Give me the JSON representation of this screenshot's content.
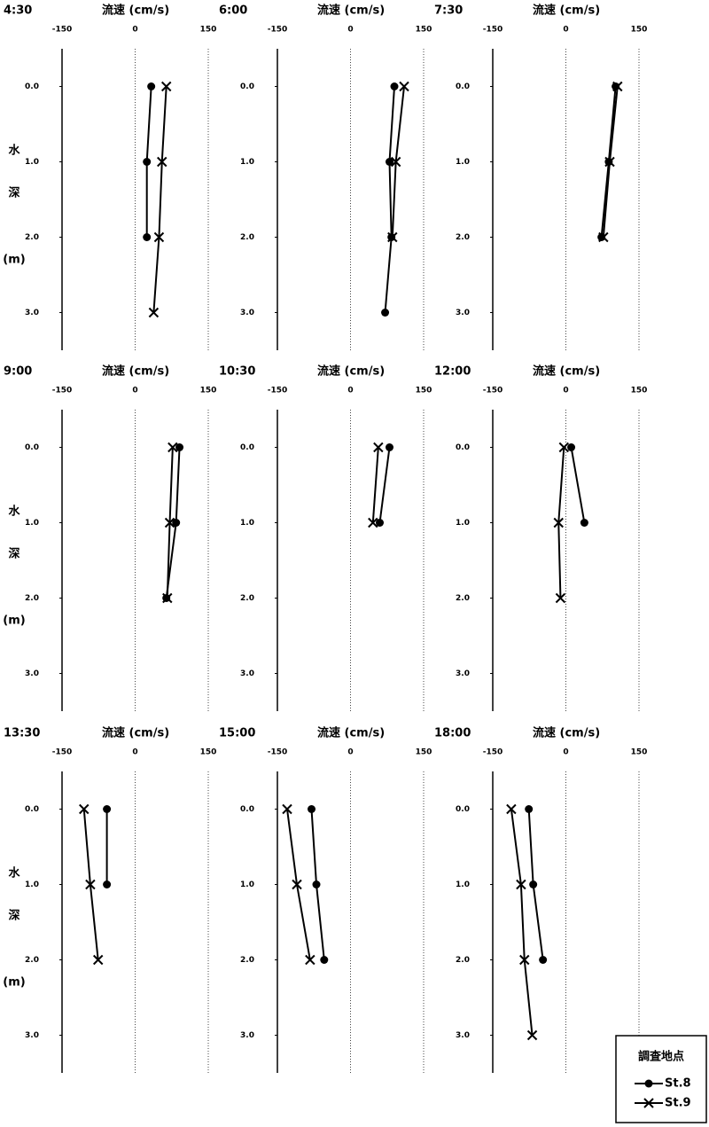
{
  "legend_title": "調査地点",
  "legend_position": "lower right",
  "chart_data": [
    {
      "type": "line",
      "title": "4:30",
      "xlabel": "流速 (cm/s)",
      "ylabel": [
        "水",
        "深",
        "(m)"
      ],
      "xlim": [
        -150,
        150
      ],
      "xticks": [
        -150,
        0,
        150
      ],
      "ylim": [
        -0.5,
        3.5
      ],
      "y_reversed": true,
      "yticks": [
        {
          "value": 0,
          "label": "0.0"
        },
        {
          "value": 1,
          "label": "1.0"
        },
        {
          "value": 2,
          "label": "2.0"
        },
        {
          "value": 3,
          "label": "3.0"
        }
      ],
      "series": [
        {
          "name": "St.8",
          "marker": "o",
          "color": "#000000",
          "x": [
            33,
            24,
            24
          ],
          "y": [
            0,
            1,
            2
          ]
        },
        {
          "name": "St.9",
          "marker": "x",
          "color": "#000000",
          "x": [
            64,
            55,
            49,
            38
          ],
          "y": [
            0,
            1,
            2,
            3
          ]
        }
      ]
    },
    {
      "type": "line",
      "title": "6:00",
      "xlabel": "流速 (cm/s)",
      "xlim": [
        -150,
        150
      ],
      "xticks": [
        -150,
        0,
        150
      ],
      "ylim": [
        -0.5,
        3.5
      ],
      "y_reversed": true,
      "yticks": [
        {
          "value": 0,
          "label": "0.0"
        },
        {
          "value": 1,
          "label": "1.0"
        },
        {
          "value": 2,
          "label": "2.0"
        },
        {
          "value": 3,
          "label": "3.0"
        }
      ],
      "series": [
        {
          "name": "St.8",
          "marker": "o",
          "color": "#000000",
          "x": [
            90,
            80,
            84,
            71
          ],
          "y": [
            0,
            1,
            2,
            3
          ]
        },
        {
          "name": "St.9",
          "marker": "x",
          "color": "#000000",
          "x": [
            110,
            93,
            86
          ],
          "y": [
            0,
            1,
            2
          ]
        }
      ]
    },
    {
      "type": "line",
      "title": "7:30",
      "xlabel": "流速 (cm/s)",
      "xlim": [
        -150,
        150
      ],
      "xticks": [
        -150,
        0,
        150
      ],
      "ylim": [
        -0.5,
        3.5
      ],
      "y_reversed": true,
      "yticks": [
        {
          "value": 0,
          "label": "0.0"
        },
        {
          "value": 1,
          "label": "1.0"
        },
        {
          "value": 2,
          "label": "2.0"
        },
        {
          "value": 3,
          "label": "3.0"
        }
      ],
      "series": [
        {
          "name": "St.8",
          "marker": "o",
          "color": "#000000",
          "x": [
            102,
            88,
            73
          ],
          "y": [
            0,
            1,
            2
          ]
        },
        {
          "name": "St.9",
          "marker": "x",
          "color": "#000000",
          "x": [
            106,
            90,
            77
          ],
          "y": [
            0,
            1,
            2
          ]
        }
      ]
    },
    {
      "type": "line",
      "title": "9:00",
      "xlabel": "流速 (cm/s)",
      "ylabel": [
        "水",
        "深",
        "(m)"
      ],
      "xlim": [
        -150,
        150
      ],
      "xticks": [
        -150,
        0,
        150
      ],
      "ylim": [
        -0.5,
        3.5
      ],
      "y_reversed": true,
      "yticks": [
        {
          "value": 0,
          "label": "0.0"
        },
        {
          "value": 1,
          "label": "1.0"
        },
        {
          "value": 2,
          "label": "2.0"
        },
        {
          "value": 3,
          "label": "3.0"
        }
      ],
      "series": [
        {
          "name": "St.8",
          "marker": "o",
          "color": "#000000",
          "x": [
            91,
            84,
            64
          ],
          "y": [
            0,
            1,
            2
          ]
        },
        {
          "name": "St.9",
          "marker": "x",
          "color": "#000000",
          "x": [
            77,
            71,
            66
          ],
          "y": [
            0,
            1,
            2
          ]
        }
      ]
    },
    {
      "type": "line",
      "title": "10:30",
      "xlabel": "流速 (cm/s)",
      "xlim": [
        -150,
        150
      ],
      "xticks": [
        -150,
        0,
        150
      ],
      "ylim": [
        -0.5,
        3.5
      ],
      "y_reversed": true,
      "yticks": [
        {
          "value": 0,
          "label": "0.0"
        },
        {
          "value": 1,
          "label": "1.0"
        },
        {
          "value": 2,
          "label": "2.0"
        },
        {
          "value": 3,
          "label": "3.0"
        }
      ],
      "series": [
        {
          "name": "St.8",
          "marker": "o",
          "color": "#000000",
          "x": [
            80,
            60
          ],
          "y": [
            0,
            1
          ]
        },
        {
          "name": "St.9",
          "marker": "x",
          "color": "#000000",
          "x": [
            57,
            46
          ],
          "y": [
            0,
            1
          ]
        }
      ]
    },
    {
      "type": "line",
      "title": "12:00",
      "xlabel": "流速 (cm/s)",
      "xlim": [
        -150,
        150
      ],
      "xticks": [
        -150,
        0,
        150
      ],
      "ylim": [
        -0.5,
        3.5
      ],
      "y_reversed": true,
      "yticks": [
        {
          "value": 0,
          "label": "0.0"
        },
        {
          "value": 1,
          "label": "1.0"
        },
        {
          "value": 2,
          "label": "2.0"
        },
        {
          "value": 3,
          "label": "3.0"
        }
      ],
      "series": [
        {
          "name": "St.8",
          "marker": "o",
          "color": "#000000",
          "x": [
            11,
            38
          ],
          "y": [
            0,
            1
          ]
        },
        {
          "name": "St.9",
          "marker": "x",
          "color": "#000000",
          "x": [
            -4,
            -15,
            -11
          ],
          "y": [
            0,
            1,
            2
          ]
        }
      ]
    },
    {
      "type": "line",
      "title": "13:30",
      "xlabel": "流速 (cm/s)",
      "ylabel": [
        "水",
        "深",
        "(m)"
      ],
      "xlim": [
        -150,
        150
      ],
      "xticks": [
        -150,
        0,
        150
      ],
      "ylim": [
        -0.5,
        3.5
      ],
      "y_reversed": true,
      "yticks": [
        {
          "value": 0,
          "label": "0.0"
        },
        {
          "value": 1,
          "label": "1.0"
        },
        {
          "value": 2,
          "label": "2.0"
        },
        {
          "value": 3,
          "label": "3.0"
        }
      ],
      "series": [
        {
          "name": "St.8",
          "marker": "o",
          "color": "#000000",
          "x": [
            -58,
            -58
          ],
          "y": [
            0,
            1
          ]
        },
        {
          "name": "St.9",
          "marker": "x",
          "color": "#000000",
          "x": [
            -105,
            -92,
            -76
          ],
          "y": [
            0,
            1,
            2
          ]
        }
      ]
    },
    {
      "type": "line",
      "title": "15:00",
      "xlabel": "流速 (cm/s)",
      "xlim": [
        -150,
        150
      ],
      "xticks": [
        -150,
        0,
        150
      ],
      "ylim": [
        -0.5,
        3.5
      ],
      "y_reversed": true,
      "yticks": [
        {
          "value": 0,
          "label": "0.0"
        },
        {
          "value": 1,
          "label": "1.0"
        },
        {
          "value": 2,
          "label": "2.0"
        },
        {
          "value": 3,
          "label": "3.0"
        }
      ],
      "series": [
        {
          "name": "St.8",
          "marker": "o",
          "color": "#000000",
          "x": [
            -80,
            -70,
            -54
          ],
          "y": [
            0,
            1,
            2
          ]
        },
        {
          "name": "St.9",
          "marker": "x",
          "color": "#000000",
          "x": [
            -130,
            -110,
            -83
          ],
          "y": [
            0,
            1,
            2
          ]
        }
      ]
    },
    {
      "type": "line",
      "title": "18:00",
      "xlabel": "流速 (cm/s)",
      "xlim": [
        -150,
        150
      ],
      "xticks": [
        -150,
        0,
        150
      ],
      "ylim": [
        -0.5,
        3.5
      ],
      "y_reversed": true,
      "yticks": [
        {
          "value": 0,
          "label": "0.0"
        },
        {
          "value": 1,
          "label": "1.0"
        },
        {
          "value": 2,
          "label": "2.0"
        },
        {
          "value": 3,
          "label": "3.0"
        }
      ],
      "series": [
        {
          "name": "St.8",
          "marker": "o",
          "color": "#000000",
          "x": [
            -76,
            -67,
            -47
          ],
          "y": [
            0,
            1,
            2
          ]
        },
        {
          "name": "St.9",
          "marker": "x",
          "color": "#000000",
          "x": [
            -112,
            -92,
            -85,
            -69
          ],
          "y": [
            0,
            1,
            2,
            3
          ]
        }
      ]
    }
  ]
}
